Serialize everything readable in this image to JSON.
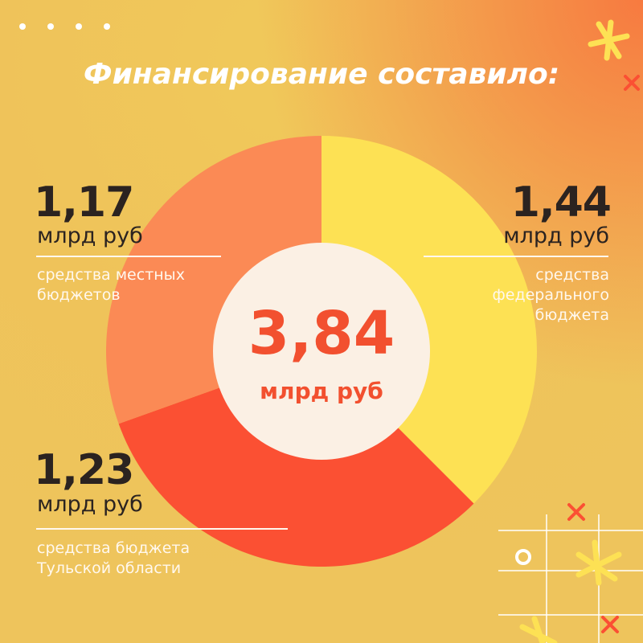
{
  "chart_data": {
    "type": "donut",
    "title": "Финансирование составило:",
    "categories": [
      "средства федерального бюджета",
      "средства бюджета Тульской области",
      "средства местных бюджетов"
    ],
    "values": [
      1.44,
      1.23,
      1.17
    ],
    "value_labels": [
      "1,44",
      "1,23",
      "1,17"
    ],
    "colors": [
      "#fde154",
      "#fb5033",
      "#fb8a55"
    ],
    "unit": "млрд руб",
    "total": 3.84,
    "total_label": "3,84"
  }
}
